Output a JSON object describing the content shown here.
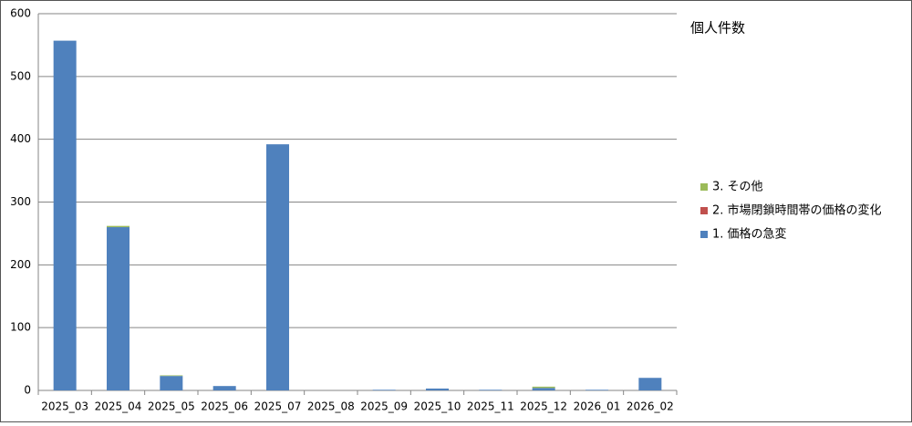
{
  "chart_data": {
    "type": "stacked-bar",
    "title": "個人件数",
    "categories": [
      "2025_03",
      "2025_04",
      "2025_05",
      "2025_06",
      "2025_07",
      "2025_08",
      "2025_09",
      "2025_10",
      "2025_11",
      "2025_12",
      "2026_01",
      "2026_02"
    ],
    "series": [
      {
        "name": "1. 価格の急変",
        "color": "#4f81bd",
        "values": [
          557,
          260,
          23,
          7,
          392,
          0,
          1,
          3,
          1,
          4,
          1,
          20
        ]
      },
      {
        "name": "2. 市場閉鎖時間帯の価格の変化",
        "color": "#c0504d",
        "values": [
          0,
          0,
          0,
          0,
          0,
          0,
          0,
          0,
          0,
          0,
          0,
          0
        ]
      },
      {
        "name": "3. その他",
        "color": "#9bbb59",
        "values": [
          0,
          2,
          1,
          0,
          0,
          0,
          0,
          0,
          0,
          2,
          0,
          0
        ]
      }
    ],
    "ylim": [
      0,
      600
    ],
    "yticks": [
      0,
      100,
      200,
      300,
      400,
      500,
      600
    ],
    "grid": true
  }
}
